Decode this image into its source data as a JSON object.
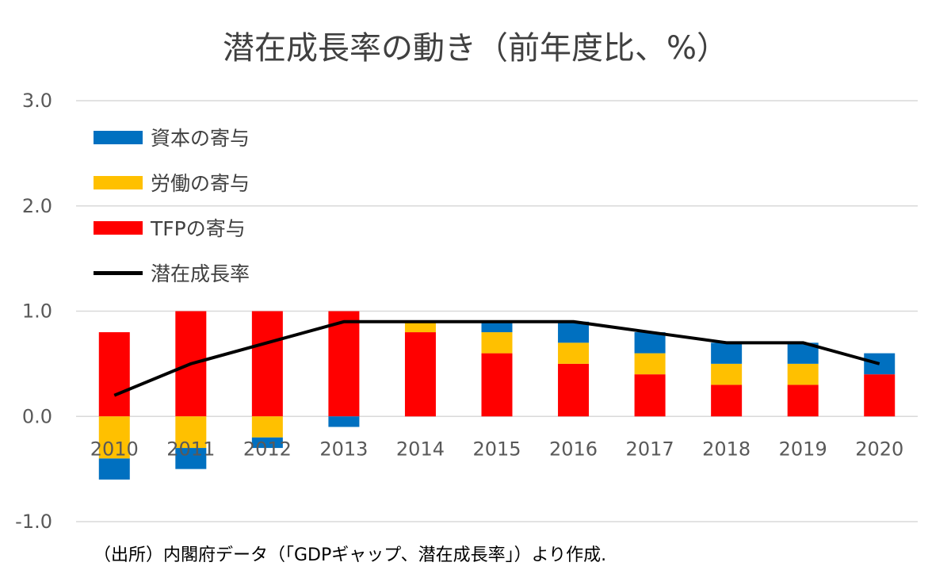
{
  "chart_data": {
    "type": "bar",
    "stacked": true,
    "title": "潜在成長率の動き（前年度比、%）",
    "categories": [
      "2010",
      "2011",
      "2012",
      "2013",
      "2014",
      "2015",
      "2016",
      "2017",
      "2018",
      "2019",
      "2020"
    ],
    "ylim": [
      -1.0,
      3.0
    ],
    "yticks": [
      "3.0",
      "2.0",
      "1.0",
      "0.0",
      "-1.0"
    ],
    "ytick_values": [
      3.0,
      2.0,
      1.0,
      0.0,
      -1.0
    ],
    "grid": true,
    "legend_position": "top-left",
    "series": [
      {
        "name": "資本の寄与",
        "type": "bar",
        "color": "#0070C0",
        "values": [
          -0.2,
          -0.2,
          -0.1,
          -0.1,
          0.0,
          0.1,
          0.2,
          0.2,
          0.2,
          0.2,
          0.2
        ]
      },
      {
        "name": "労働の寄与",
        "type": "bar",
        "color": "#FFC000",
        "values": [
          -0.4,
          -0.3,
          -0.2,
          0.0,
          0.1,
          0.2,
          0.2,
          0.2,
          0.2,
          0.2,
          0.0
        ]
      },
      {
        "name": "TFPの寄与",
        "type": "bar",
        "color": "#FF0000",
        "values": [
          0.8,
          1.0,
          1.0,
          1.0,
          0.8,
          0.6,
          0.5,
          0.4,
          0.3,
          0.3,
          0.4
        ]
      },
      {
        "name": "潜在成長率",
        "type": "line",
        "color": "#000000",
        "values": [
          0.2,
          0.5,
          0.7,
          0.9,
          0.9,
          0.9,
          0.9,
          0.8,
          0.7,
          0.7,
          0.5
        ]
      }
    ]
  },
  "source_note": "（出所）内閣府データ（「GDPギャップ、潜在成長率」）より作成."
}
